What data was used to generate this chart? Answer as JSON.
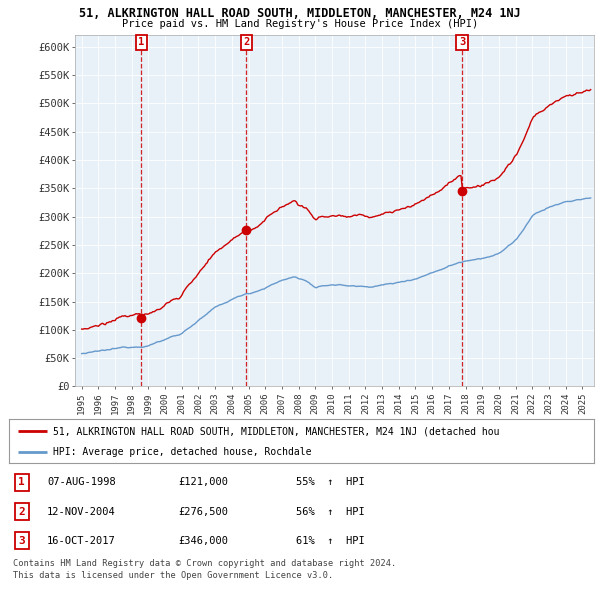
{
  "title": "51, ALKRINGTON HALL ROAD SOUTH, MIDDLETON, MANCHESTER, M24 1NJ",
  "subtitle": "Price paid vs. HM Land Registry's House Price Index (HPI)",
  "ylabel_ticks": [
    "£0",
    "£50K",
    "£100K",
    "£150K",
    "£200K",
    "£250K",
    "£300K",
    "£350K",
    "£400K",
    "£450K",
    "£500K",
    "£550K",
    "£600K"
  ],
  "ytick_values": [
    0,
    50000,
    100000,
    150000,
    200000,
    250000,
    300000,
    350000,
    400000,
    450000,
    500000,
    550000,
    600000
  ],
  "ylim": [
    0,
    620000
  ],
  "legend_line1": "51, ALKRINGTON HALL ROAD SOUTH, MIDDLETON, MANCHESTER, M24 1NJ (detached hou",
  "legend_line2": "HPI: Average price, detached house, Rochdale",
  "transactions": [
    {
      "label": "1",
      "date": "07-AUG-1998",
      "price": 121000,
      "pct": "55%",
      "dir": "↑"
    },
    {
      "label": "2",
      "date": "12-NOV-2004",
      "price": 276500,
      "pct": "56%",
      "dir": "↑"
    },
    {
      "label": "3",
      "date": "16-OCT-2017",
      "price": 346000,
      "pct": "61%",
      "dir": "↑"
    }
  ],
  "footer1": "Contains HM Land Registry data © Crown copyright and database right 2024.",
  "footer2": "This data is licensed under the Open Government Licence v3.0.",
  "red_color": "#cc0000",
  "blue_color": "#6699cc",
  "plot_bg": "#e8f0f8",
  "grid_color": "#ffffff",
  "bg_color": "#ffffff"
}
